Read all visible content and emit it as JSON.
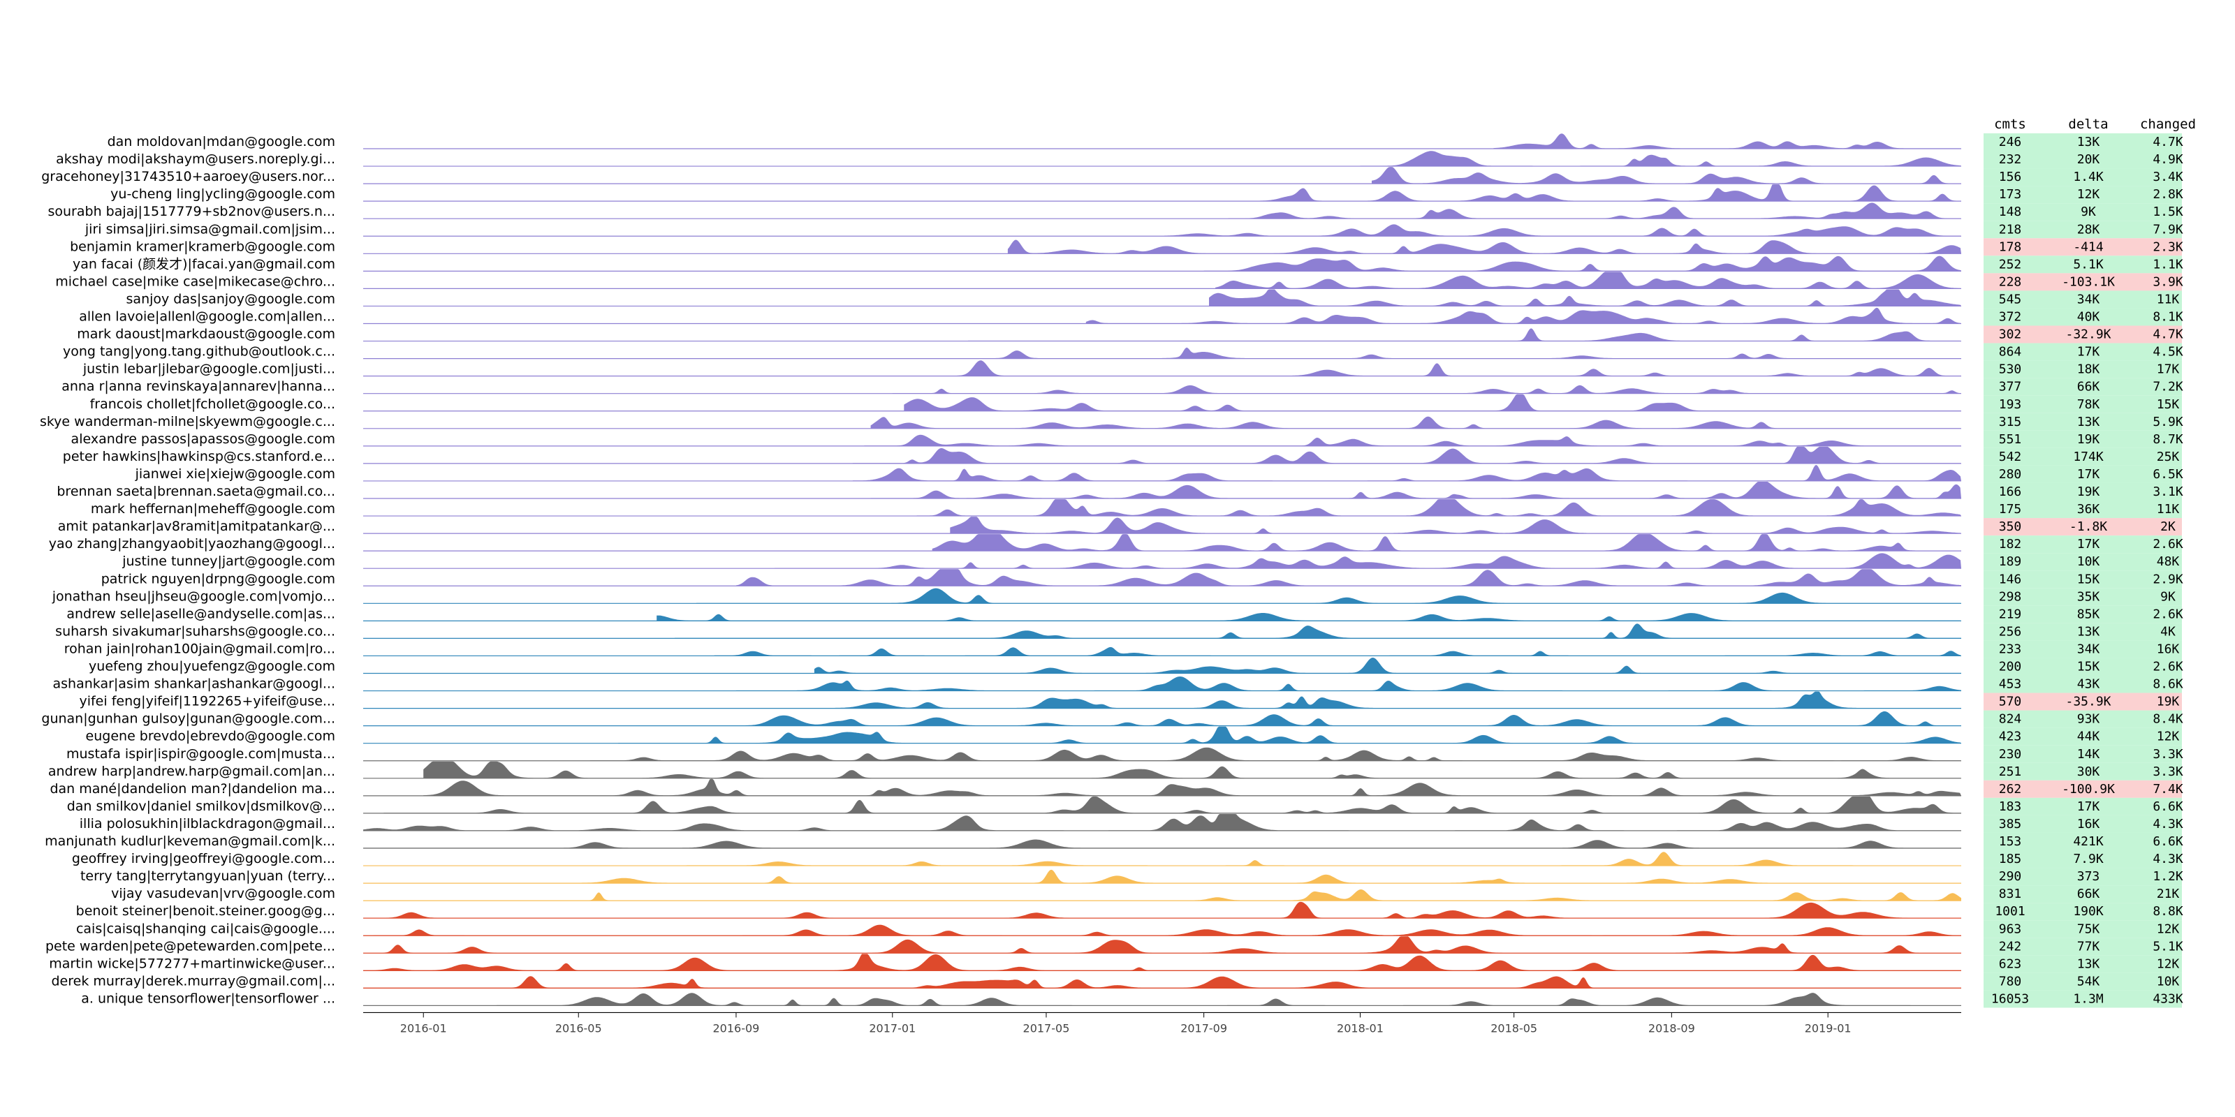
{
  "chart_data": {
    "type": "area",
    "x_ticks": [
      "2016-01",
      "2016-05",
      "2016-09",
      "2017-01",
      "2017-05",
      "2017-09",
      "2018-01",
      "2018-05",
      "2018-09",
      "2019-01"
    ],
    "xlim": [
      "2015-11-15",
      "2019-04-15"
    ],
    "table_columns": [
      "cmts",
      "delta",
      "changed"
    ],
    "colors": {
      "purple": "#8d7fd3",
      "blue": "#2f86b9",
      "gray": "#6e6e6e",
      "yellow": "#f8bd55",
      "red": "#de4a2c",
      "positive_bg": "#c4f5d6",
      "negative_bg": "#fbd1d1"
    },
    "series": [
      {
        "name": "dan moldovan|mdan@google.com",
        "group": "purple",
        "start": "2018-04-15",
        "cmts": "246",
        "delta": "13K",
        "changed": "4.7K",
        "negative": false
      },
      {
        "name": "akshay modi|akshaym@users.noreply.gi...",
        "group": "purple",
        "start": "2018-01-01",
        "cmts": "232",
        "delta": "20K",
        "changed": "4.9K",
        "negative": false
      },
      {
        "name": "gracehoney|31743510+aaroey@users.nor...",
        "group": "purple",
        "start": "2018-01-10",
        "cmts": "156",
        "delta": "1.4K",
        "changed": "3.4K",
        "negative": false
      },
      {
        "name": "yu-cheng ling|ycling@google.com",
        "group": "purple",
        "start": "2017-09-15",
        "cmts": "173",
        "delta": "12K",
        "changed": "2.8K",
        "negative": false
      },
      {
        "name": "sourabh bajaj|1517779+sb2nov@users.n...",
        "group": "purple",
        "start": "2017-09-20",
        "cmts": "148",
        "delta": "9K",
        "changed": "1.5K",
        "negative": false
      },
      {
        "name": "jiri simsa|jiri.simsa@gmail.com|jsim...",
        "group": "purple",
        "start": "2017-08-01",
        "cmts": "218",
        "delta": "28K",
        "changed": "7.9K",
        "negative": false
      },
      {
        "name": "benjamin kramer|kramerb@google.com",
        "group": "purple",
        "start": "2017-04-01",
        "cmts": "178",
        "delta": "-414",
        "changed": "2.3K",
        "negative": true
      },
      {
        "name": "yan facai (颜发才)|facai.yan@gmail.com",
        "group": "purple",
        "start": "2017-09-01",
        "cmts": "252",
        "delta": "5.1K",
        "changed": "1.1K",
        "negative": false
      },
      {
        "name": "michael case|mike case|mikecase@chro...",
        "group": "purple",
        "start": "2017-09-10",
        "cmts": "228",
        "delta": "-103.1K",
        "changed": "3.9K",
        "negative": true
      },
      {
        "name": "sanjoy das|sanjoy@google.com",
        "group": "purple",
        "start": "2017-09-05",
        "cmts": "545",
        "delta": "34K",
        "changed": "11K",
        "negative": false
      },
      {
        "name": "allen lavoie|allenl@google.com|allen...",
        "group": "purple",
        "start": "2017-06-01",
        "cmts": "372",
        "delta": "40K",
        "changed": "8.1K",
        "negative": false
      },
      {
        "name": "mark daoust|markdaoust@google.com",
        "group": "purple",
        "start": "2017-03-01",
        "cmts": "302",
        "delta": "-32.9K",
        "changed": "4.7K",
        "negative": true
      },
      {
        "name": "yong tang|yong.tang.github@outlook.c...",
        "group": "purple",
        "start": "2017-03-20",
        "cmts": "864",
        "delta": "17K",
        "changed": "4.5K",
        "negative": false
      },
      {
        "name": "justin lebar|jlebar@google.com|justi...",
        "group": "purple",
        "start": "2017-01-15",
        "cmts": "530",
        "delta": "18K",
        "changed": "17K",
        "negative": false
      },
      {
        "name": "anna r|anna revinskaya|annarev|hanna...",
        "group": "purple",
        "start": "2017-01-01",
        "cmts": "377",
        "delta": "66K",
        "changed": "7.2K",
        "negative": false
      },
      {
        "name": "francois chollet|fchollet@google.co...",
        "group": "purple",
        "start": "2017-01-10",
        "cmts": "193",
        "delta": "78K",
        "changed": "15K",
        "negative": false
      },
      {
        "name": "skye wanderman-milne|skyewm@google.c...",
        "group": "purple",
        "start": "2016-12-15",
        "cmts": "315",
        "delta": "13K",
        "changed": "5.9K",
        "negative": false
      },
      {
        "name": "alexandre passos|apassos@google.com",
        "group": "purple",
        "start": "2016-12-10",
        "cmts": "551",
        "delta": "19K",
        "changed": "8.7K",
        "negative": false
      },
      {
        "name": "peter hawkins|hawkinsp@cs.stanford.e...",
        "group": "purple",
        "start": "2016-12-01",
        "cmts": "542",
        "delta": "174K",
        "changed": "25K",
        "negative": false
      },
      {
        "name": "jianwei xie|xiejw@google.com",
        "group": "purple",
        "start": "2016-12-01",
        "cmts": "280",
        "delta": "17K",
        "changed": "6.5K",
        "negative": false
      },
      {
        "name": "brennan saeta|brennan.saeta@gmail.co...",
        "group": "purple",
        "start": "2016-12-15",
        "cmts": "166",
        "delta": "19K",
        "changed": "3.1K",
        "negative": false
      },
      {
        "name": "mark heffernan|meheff@google.com",
        "group": "purple",
        "start": "2017-01-20",
        "cmts": "175",
        "delta": "36K",
        "changed": "11K",
        "negative": false
      },
      {
        "name": "amit patankar|av8ramit|amitpatankar@...",
        "group": "purple",
        "start": "2017-02-15",
        "cmts": "350",
        "delta": "-1.8K",
        "changed": "2K",
        "negative": true
      },
      {
        "name": "yao zhang|zhangyaobit|yaozhang@googl...",
        "group": "purple",
        "start": "2017-02-01",
        "cmts": "182",
        "delta": "17K",
        "changed": "2.6K",
        "negative": false
      },
      {
        "name": "justine tunney|jart@google.com",
        "group": "purple",
        "start": "2016-10-01",
        "cmts": "189",
        "delta": "10K",
        "changed": "48K",
        "negative": false
      },
      {
        "name": "patrick nguyen|drpng@google.com",
        "group": "purple",
        "start": "2016-09-01",
        "cmts": "146",
        "delta": "15K",
        "changed": "2.9K",
        "negative": false
      },
      {
        "name": "jonathan hseu|jhseu@google.com|vomjo...",
        "group": "blue",
        "start": "2016-08-01",
        "cmts": "298",
        "delta": "35K",
        "changed": "9K",
        "negative": false
      },
      {
        "name": "andrew selle|aselle@andyselle.com|as...",
        "group": "blue",
        "start": "2016-07-01",
        "cmts": "219",
        "delta": "85K",
        "changed": "2.6K",
        "negative": false
      },
      {
        "name": "suharsh sivakumar|suharshs@google.co...",
        "group": "blue",
        "start": "2016-07-15",
        "cmts": "256",
        "delta": "13K",
        "changed": "4K",
        "negative": false
      },
      {
        "name": "rohan jain|rohan100jain@gmail.com|ro...",
        "group": "blue",
        "start": "2016-08-15",
        "cmts": "233",
        "delta": "34K",
        "changed": "16K",
        "negative": false
      },
      {
        "name": "yuefeng zhou|yuefengz@google.com",
        "group": "blue",
        "start": "2016-11-01",
        "cmts": "200",
        "delta": "15K",
        "changed": "2.6K",
        "negative": false
      },
      {
        "name": "ashankar|asim shankar|ashankar@googl...",
        "group": "blue",
        "start": "2016-09-01",
        "cmts": "453",
        "delta": "43K",
        "changed": "8.6K",
        "negative": false
      },
      {
        "name": "yifei feng|yifeif|1192265+yifeif@use...",
        "group": "blue",
        "start": "2016-09-20",
        "cmts": "570",
        "delta": "-35.9K",
        "changed": "19K",
        "negative": true
      },
      {
        "name": "gunan|gunhan gulsoy|gunan@google.com...",
        "group": "blue",
        "start": "2016-06-15",
        "cmts": "824",
        "delta": "93K",
        "changed": "8.4K",
        "negative": false
      },
      {
        "name": "eugene brevdo|ebrevdo@google.com",
        "group": "blue",
        "start": "2016-06-01",
        "cmts": "423",
        "delta": "44K",
        "changed": "12K",
        "negative": false
      },
      {
        "name": "mustafa ispir|ispir@google.com|musta...",
        "group": "gray",
        "start": "2016-05-10",
        "cmts": "230",
        "delta": "14K",
        "changed": "3.3K",
        "negative": false
      },
      {
        "name": "andrew harp|andrew.harp@gmail.com|an...",
        "group": "gray",
        "start": "2016-01-01",
        "cmts": "251",
        "delta": "30K",
        "changed": "3.3K",
        "negative": false
      },
      {
        "name": "dan mané|dandelion man?|dandelion ma...",
        "group": "gray",
        "start": "2016-01-01",
        "cmts": "262",
        "delta": "-100.9K",
        "changed": "7.4K",
        "negative": true
      },
      {
        "name": "dan smilkov|daniel smilkov|dsmilkov@...",
        "group": "gray",
        "start": "2015-12-01",
        "cmts": "183",
        "delta": "17K",
        "changed": "6.6K",
        "negative": false
      },
      {
        "name": "illia polosukhin|ilblackdragon@gmail...",
        "group": "gray",
        "start": "2015-11-15",
        "cmts": "385",
        "delta": "16K",
        "changed": "4.3K",
        "negative": false
      },
      {
        "name": "manjunath kudlur|keveman@gmail.com|k...",
        "group": "gray",
        "start": "2015-11-15",
        "cmts": "153",
        "delta": "421K",
        "changed": "6.6K",
        "negative": false
      },
      {
        "name": "geoffrey irving|geoffreyi@google.com...",
        "group": "yellow",
        "start": "2015-11-15",
        "cmts": "185",
        "delta": "7.9K",
        "changed": "4.3K",
        "negative": false
      },
      {
        "name": "terry tang|terrytangyuan|yuan (terry...",
        "group": "yellow",
        "start": "2015-11-15",
        "cmts": "290",
        "delta": "373",
        "changed": "1.2K",
        "negative": false
      },
      {
        "name": "vijay vasudevan|vrv@google.com",
        "group": "yellow",
        "start": "2015-11-15",
        "cmts": "831",
        "delta": "66K",
        "changed": "21K",
        "negative": false
      },
      {
        "name": "benoit steiner|benoit.steiner.goog@g...",
        "group": "red",
        "start": "2015-11-15",
        "cmts": "1001",
        "delta": "190K",
        "changed": "8.8K",
        "negative": false
      },
      {
        "name": "cais|caisq|shanqing cai|cais@google....",
        "group": "red",
        "start": "2015-11-15",
        "cmts": "963",
        "delta": "75K",
        "changed": "12K",
        "negative": false
      },
      {
        "name": "pete warden|pete@petewarden.com|pete...",
        "group": "red",
        "start": "2015-11-15",
        "cmts": "242",
        "delta": "77K",
        "changed": "5.1K",
        "negative": false
      },
      {
        "name": "martin wicke|577277+martinwicke@user...",
        "group": "red",
        "start": "2015-11-15",
        "cmts": "623",
        "delta": "13K",
        "changed": "12K",
        "negative": false
      },
      {
        "name": "derek murray|derek.murray@gmail.com|...",
        "group": "red",
        "start": "2015-11-15",
        "cmts": "780",
        "delta": "54K",
        "changed": "10K",
        "negative": false
      },
      {
        "name": "a. unique tensorflower|tensorflower ...",
        "group": "gray",
        "start": "2015-11-15",
        "cmts": "16053",
        "delta": "1.3M",
        "changed": "433K",
        "negative": false
      }
    ]
  }
}
